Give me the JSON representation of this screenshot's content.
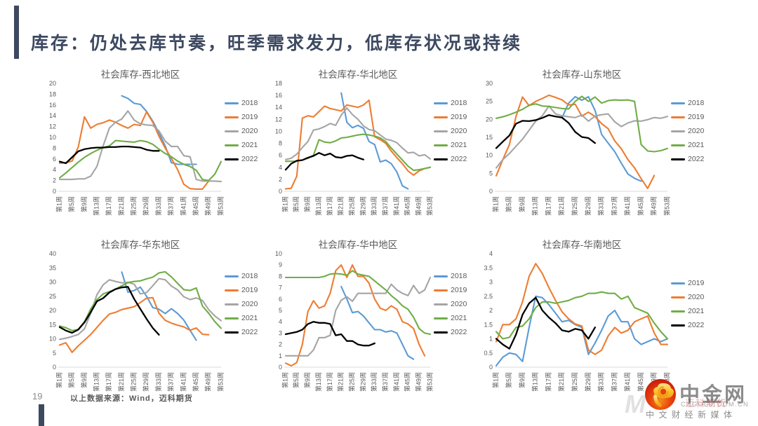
{
  "page": {
    "title": "库存：仍处去库节奏，旺季需求发力，低库存状况或持续",
    "page_number": "19",
    "source_note": "以上数据来源：Wind，迈科期货"
  },
  "branding": {
    "logo_text": "中金网",
    "logo_domain": "CNGOLD.COM.CN",
    "logo_tagline": "中文财经新媒体",
    "watermark_letter": "M",
    "watermark_text": "迈科期货",
    "logo_icon": "gold-cloud-swirl-in-red-circle"
  },
  "colors": {
    "accent": "#3d4961",
    "blue": "#5B9BD5",
    "orange": "#ED7D31",
    "gray": "#A5A5A5",
    "green": "#70AD47",
    "black": "#000000",
    "axis_text": "#595959",
    "baseline": "#D9D9D9"
  },
  "x_axis": {
    "weeks_sampled": [
      1,
      3,
      5,
      7,
      9,
      11,
      13,
      15,
      17,
      19,
      21,
      23,
      25,
      27,
      29,
      31,
      33,
      35,
      37,
      39,
      41,
      43,
      45,
      47,
      49,
      51,
      53
    ],
    "tick_labels": [
      "第1周",
      "第5周",
      "第9周",
      "第13周",
      "第17周",
      "第21周",
      "第25周",
      "第29周",
      "第33周",
      "第37周",
      "第41周",
      "第45周",
      "第49周",
      "第53周"
    ]
  },
  "chart_data": [
    {
      "type": "line",
      "title": "社会库存-西北地区",
      "ylim": [
        0,
        20
      ],
      "ystep": 2,
      "xlabel": "",
      "ylabel": "",
      "grid": false,
      "legend_position": "right",
      "series": [
        {
          "name": "2018",
          "color": "#5B9BD5",
          "values": [
            null,
            null,
            null,
            null,
            null,
            null,
            null,
            null,
            null,
            null,
            17.7,
            17.2,
            16.3,
            16.1,
            14.8,
            13.0,
            10.8,
            8.4,
            5.3,
            5.0,
            5.0,
            5.0,
            5.0,
            null,
            null,
            null,
            null
          ]
        },
        {
          "name": "2019",
          "color": "#ED7D31",
          "values": [
            5.2,
            5.3,
            5.6,
            8.2,
            13.8,
            11.7,
            12.4,
            12.7,
            13.2,
            12.8,
            12.2,
            11.7,
            12.4,
            12.2,
            14.7,
            12.8,
            10.2,
            8.0,
            6.1,
            4.0,
            1.3,
            0.5,
            0.4,
            0.4,
            1.9,
            null,
            null
          ]
        },
        {
          "name": "2020",
          "color": "#A5A5A5",
          "values": [
            2.2,
            2.2,
            2.2,
            2.3,
            2.3,
            2.8,
            4.6,
            8.4,
            11.7,
            12.8,
            13.4,
            14.9,
            13.2,
            12.5,
            12.3,
            12.2,
            11.2,
            9.3,
            8.3,
            8.3,
            6.6,
            6.4,
            2.2,
            1.9,
            1.9,
            1.9,
            1.8
          ]
        },
        {
          "name": "2021",
          "color": "#70AD47",
          "values": [
            2.5,
            3.4,
            4.4,
            5.4,
            6.3,
            7.0,
            7.6,
            8.1,
            8.4,
            9.4,
            9.3,
            9.2,
            9.1,
            9.4,
            9.2,
            8.7,
            7.8,
            7.0,
            6.4,
            5.6,
            5.0,
            4.6,
            3.9,
            2.2,
            2.0,
            3.2,
            5.5
          ]
        },
        {
          "name": "2022",
          "color": "#000000",
          "values": [
            5.5,
            5.2,
            6.3,
            7.4,
            7.8,
            8.0,
            8.1,
            8.1,
            8.2,
            8.2,
            8.3,
            8.3,
            8.2,
            8.1,
            7.7,
            7.5,
            7.5,
            null,
            null,
            null,
            null,
            null,
            null,
            null,
            null,
            null,
            null
          ]
        }
      ]
    },
    {
      "type": "line",
      "title": "社会库存-华北地区",
      "ylim": [
        0,
        18
      ],
      "ystep": 2,
      "xlabel": "",
      "ylabel": "",
      "grid": false,
      "legend_position": "right",
      "series": [
        {
          "name": "2018",
          "color": "#5B9BD5",
          "values": [
            null,
            null,
            null,
            null,
            null,
            null,
            null,
            null,
            null,
            null,
            16.4,
            11.5,
            10.6,
            11.0,
            10.5,
            8.3,
            7.8,
            4.9,
            5.2,
            4.6,
            3.2,
            0.9,
            0.4,
            null,
            null,
            null,
            null
          ]
        },
        {
          "name": "2019",
          "color": "#ED7D31",
          "values": [
            0.4,
            0.5,
            2.5,
            12.2,
            12.6,
            12.4,
            13.3,
            14.2,
            13.8,
            13.6,
            13.4,
            14.4,
            14.2,
            14.0,
            14.4,
            15.2,
            9.1,
            8.6,
            8.0,
            6.7,
            5.6,
            4.6,
            3.4,
            2.7,
            3.4,
            3.8,
            4.0
          ]
        },
        {
          "name": "2020",
          "color": "#A5A5A5",
          "values": [
            5.3,
            5.5,
            6.2,
            7.3,
            8.3,
            10.2,
            10.4,
            10.8,
            11.3,
            11.0,
            12.7,
            13.9,
            12.8,
            12.0,
            10.9,
            10.3,
            10.1,
            9.4,
            8.7,
            8.5,
            8.1,
            7.2,
            6.4,
            6.5,
            5.9,
            6.1,
            5.4
          ]
        },
        {
          "name": "2021",
          "color": "#70AD47",
          "values": [
            5.0,
            5.0,
            5.0,
            5.2,
            5.5,
            6.0,
            8.6,
            8.2,
            8.1,
            8.4,
            8.9,
            9.0,
            9.2,
            9.4,
            9.5,
            9.4,
            9.2,
            8.9,
            8.3,
            7.2,
            6.2,
            5.2,
            4.2,
            3.5,
            3.6,
            3.8,
            4.0
          ]
        },
        {
          "name": "2022",
          "color": "#000000",
          "values": [
            3.6,
            4.6,
            5.1,
            5.2,
            5.6,
            5.9,
            6.4,
            6.0,
            6.3,
            5.7,
            5.6,
            5.9,
            6.0,
            5.6,
            5.3,
            null,
            null,
            null,
            null,
            null,
            null,
            null,
            null,
            null,
            null,
            null,
            null
          ]
        }
      ]
    },
    {
      "type": "line",
      "title": "社会库存-山东地区",
      "ylim": [
        0,
        30
      ],
      "ystep": 5,
      "xlabel": "",
      "ylabel": "",
      "grid": false,
      "legend_position": "right",
      "series": [
        {
          "name": "2018",
          "color": "#5B9BD5",
          "values": [
            null,
            null,
            null,
            null,
            null,
            null,
            null,
            null,
            null,
            null,
            20.5,
            24.5,
            26.3,
            25.3,
            26.3,
            22.5,
            15.8,
            13.4,
            11.0,
            7.8,
            4.8,
            3.6,
            2.8,
            null,
            null,
            null,
            null
          ]
        },
        {
          "name": "2019",
          "color": "#ED7D31",
          "values": [
            4.3,
            8.8,
            13.0,
            20.8,
            26.2,
            23.8,
            25.0,
            25.8,
            26.7,
            26.1,
            25.4,
            24.0,
            24.2,
            20.9,
            22.0,
            20.8,
            18.8,
            17.4,
            14.0,
            11.8,
            8.8,
            6.5,
            3.5,
            0.8,
            4.4,
            null,
            null
          ]
        },
        {
          "name": "2020",
          "color": "#A5A5A5",
          "values": [
            6.5,
            8.8,
            10.5,
            12.5,
            14.5,
            17.0,
            19.5,
            21.0,
            23.7,
            21.5,
            21.0,
            20.7,
            20.5,
            21.2,
            19.5,
            20.9,
            21.3,
            21.5,
            19.3,
            18.0,
            19.0,
            19.6,
            19.5,
            19.9,
            20.5,
            20.3,
            20.8
          ]
        },
        {
          "name": "2021",
          "color": "#70AD47",
          "values": [
            20.3,
            20.7,
            21.3,
            22.0,
            22.8,
            23.9,
            24.3,
            23.7,
            23.6,
            23.3,
            23.0,
            22.9,
            25.0,
            26.4,
            25.0,
            26.2,
            24.5,
            25.2,
            25.4,
            25.3,
            25.4,
            25.0,
            13.0,
            11.2,
            11.0,
            11.3,
            11.9
          ]
        },
        {
          "name": "2022",
          "color": "#000000",
          "values": [
            12.0,
            13.8,
            15.5,
            18.8,
            19.6,
            19.5,
            19.8,
            20.4,
            21.2,
            20.8,
            20.5,
            19.0,
            16.5,
            15.1,
            14.8,
            13.4,
            null,
            null,
            null,
            null,
            null,
            null,
            null,
            null,
            null,
            null,
            null
          ]
        }
      ]
    },
    {
      "type": "line",
      "title": "社会库存-华东地区",
      "ylim": [
        0,
        40
      ],
      "ystep": 5,
      "xlabel": "",
      "ylabel": "",
      "grid": false,
      "legend_position": "right",
      "series": [
        {
          "name": "2018",
          "color": "#5B9BD5",
          "values": [
            null,
            null,
            null,
            null,
            null,
            null,
            null,
            null,
            null,
            null,
            33.5,
            26.4,
            27.0,
            28.2,
            25.0,
            21.0,
            20.4,
            18.9,
            20.6,
            18.9,
            16.6,
            13.0,
            9.5,
            null,
            null,
            null,
            null
          ]
        },
        {
          "name": "2019",
          "color": "#ED7D31",
          "values": [
            7.8,
            8.6,
            5.2,
            7.5,
            9.5,
            11.5,
            14.0,
            16.5,
            18.7,
            19.3,
            20.3,
            20.8,
            21.3,
            22.8,
            24.3,
            24.5,
            19.0,
            16.5,
            15.5,
            14.8,
            14.2,
            13.0,
            13.8,
            11.6,
            11.4,
            null,
            null
          ]
        },
        {
          "name": "2020",
          "color": "#A5A5A5",
          "values": [
            9.8,
            10.2,
            10.8,
            11.5,
            13.5,
            19.0,
            25.5,
            29.0,
            30.8,
            30.2,
            29.7,
            29.9,
            29.2,
            25.8,
            26.3,
            28.7,
            31.2,
            30.8,
            28.6,
            27.2,
            24.8,
            23.8,
            24.4,
            23.5,
            20.3,
            18.0,
            16.4
          ]
        },
        {
          "name": "2021",
          "color": "#70AD47",
          "values": [
            14.5,
            13.9,
            12.9,
            13.3,
            16.0,
            20.5,
            23.8,
            25.8,
            26.6,
            27.5,
            28.7,
            29.8,
            30.2,
            30.4,
            31.1,
            31.7,
            33.2,
            33.6,
            31.8,
            29.5,
            27.3,
            27.0,
            27.9,
            21.5,
            19.0,
            16.0,
            13.7
          ]
        },
        {
          "name": "2022",
          "color": "#000000",
          "values": [
            14.1,
            12.9,
            12.1,
            13.2,
            15.8,
            19.3,
            23.2,
            24.3,
            26.3,
            27.5,
            28.1,
            28.3,
            24.0,
            20.5,
            17.0,
            13.8,
            11.4,
            null,
            null,
            null,
            null,
            null,
            null,
            null,
            null,
            null,
            null
          ]
        }
      ]
    },
    {
      "type": "line",
      "title": "社会库存-华中地区",
      "ylim": [
        0,
        10
      ],
      "ystep": 1,
      "xlabel": "",
      "ylabel": "",
      "grid": false,
      "legend_position": "right",
      "series": [
        {
          "name": "2018",
          "color": "#5B9BD5",
          "values": [
            null,
            null,
            null,
            null,
            null,
            null,
            null,
            null,
            null,
            null,
            7.1,
            6.0,
            4.8,
            4.9,
            4.5,
            3.9,
            3.3,
            3.3,
            3.1,
            3.2,
            3.0,
            2.0,
            1.0,
            0.7,
            null,
            null,
            null
          ]
        },
        {
          "name": "2019",
          "color": "#ED7D31",
          "values": [
            0.35,
            0.12,
            0.4,
            2.0,
            4.9,
            5.85,
            5.2,
            5.4,
            6.5,
            8.5,
            9.0,
            7.9,
            9.0,
            8.0,
            8.0,
            7.4,
            6.0,
            5.2,
            5.0,
            5.4,
            5.1,
            4.0,
            3.8,
            3.4,
            2.0,
            1.0,
            null
          ]
        },
        {
          "name": "2020",
          "color": "#A5A5A5",
          "values": [
            1.0,
            1.0,
            1.0,
            1.0,
            1.0,
            1.5,
            2.6,
            2.6,
            2.8,
            5.0,
            5.9,
            6.2,
            5.8,
            6.5,
            6.5,
            6.5,
            6.5,
            6.5,
            6.5,
            7.3,
            6.8,
            6.5,
            6.3,
            7.2,
            6.5,
            6.8,
            7.9
          ]
        },
        {
          "name": "2021",
          "color": "#70AD47",
          "values": [
            7.9,
            7.9,
            7.9,
            7.9,
            7.9,
            7.9,
            7.9,
            8.0,
            8.2,
            8.25,
            8.2,
            8.1,
            8.5,
            8.2,
            8.1,
            8.0,
            7.6,
            7.2,
            6.8,
            6.3,
            5.9,
            5.4,
            5.1,
            4.4,
            3.4,
            3.0,
            2.9
          ]
        },
        {
          "name": "2022",
          "color": "#000000",
          "values": [
            2.9,
            3.0,
            3.1,
            3.3,
            3.8,
            4.0,
            3.9,
            3.9,
            3.8,
            2.8,
            2.9,
            2.3,
            2.3,
            2.0,
            1.9,
            1.9,
            2.1,
            null,
            null,
            null,
            null,
            null,
            null,
            null,
            null,
            null,
            null
          ]
        }
      ]
    },
    {
      "type": "line",
      "title": "社会库存-华南地区",
      "ylim": [
        0,
        4
      ],
      "ystep": 0.5,
      "xlabel": "",
      "ylabel": "",
      "grid": false,
      "legend_position": "right",
      "series": [
        {
          "name": "2019",
          "color": "#5B9BD5",
          "values": [
            0.05,
            0.35,
            0.5,
            0.45,
            0.2,
            1.4,
            2.5,
            2.45,
            2.2,
            1.9,
            1.6,
            1.65,
            1.5,
            1.4,
            0.45,
            0.85,
            1.3,
            1.8,
            2.0,
            1.6,
            1.6,
            1.0,
            0.8,
            0.9,
            1.0,
            0.9,
            1.0
          ]
        },
        {
          "name": "2020",
          "color": "#ED7D31",
          "values": [
            0.9,
            1.5,
            1.5,
            1.7,
            2.3,
            3.2,
            3.65,
            3.3,
            2.8,
            2.35,
            1.95,
            1.7,
            1.52,
            1.45,
            0.6,
            0.45,
            0.6,
            1.1,
            1.4,
            1.2,
            1.3,
            1.6,
            1.7,
            1.8,
            1.2,
            0.8,
            0.8
          ]
        },
        {
          "name": "2021",
          "color": "#70AD47",
          "values": [
            1.25,
            1.0,
            1.05,
            1.4,
            1.45,
            1.7,
            2.1,
            2.3,
            2.3,
            2.25,
            2.3,
            2.35,
            2.45,
            2.5,
            2.6,
            2.6,
            2.65,
            2.6,
            2.6,
            2.4,
            2.5,
            2.1,
            2.0,
            1.9,
            1.55,
            1.25,
            1.0
          ]
        },
        {
          "name": "2022",
          "color": "#000000",
          "values": [
            1.0,
            0.8,
            0.65,
            1.15,
            1.85,
            2.25,
            2.45,
            2.0,
            1.75,
            1.55,
            1.3,
            1.25,
            1.35,
            1.3,
            1.0,
            1.4,
            null,
            null,
            null,
            null,
            null,
            null,
            null,
            null,
            null,
            null,
            null
          ]
        }
      ]
    }
  ]
}
